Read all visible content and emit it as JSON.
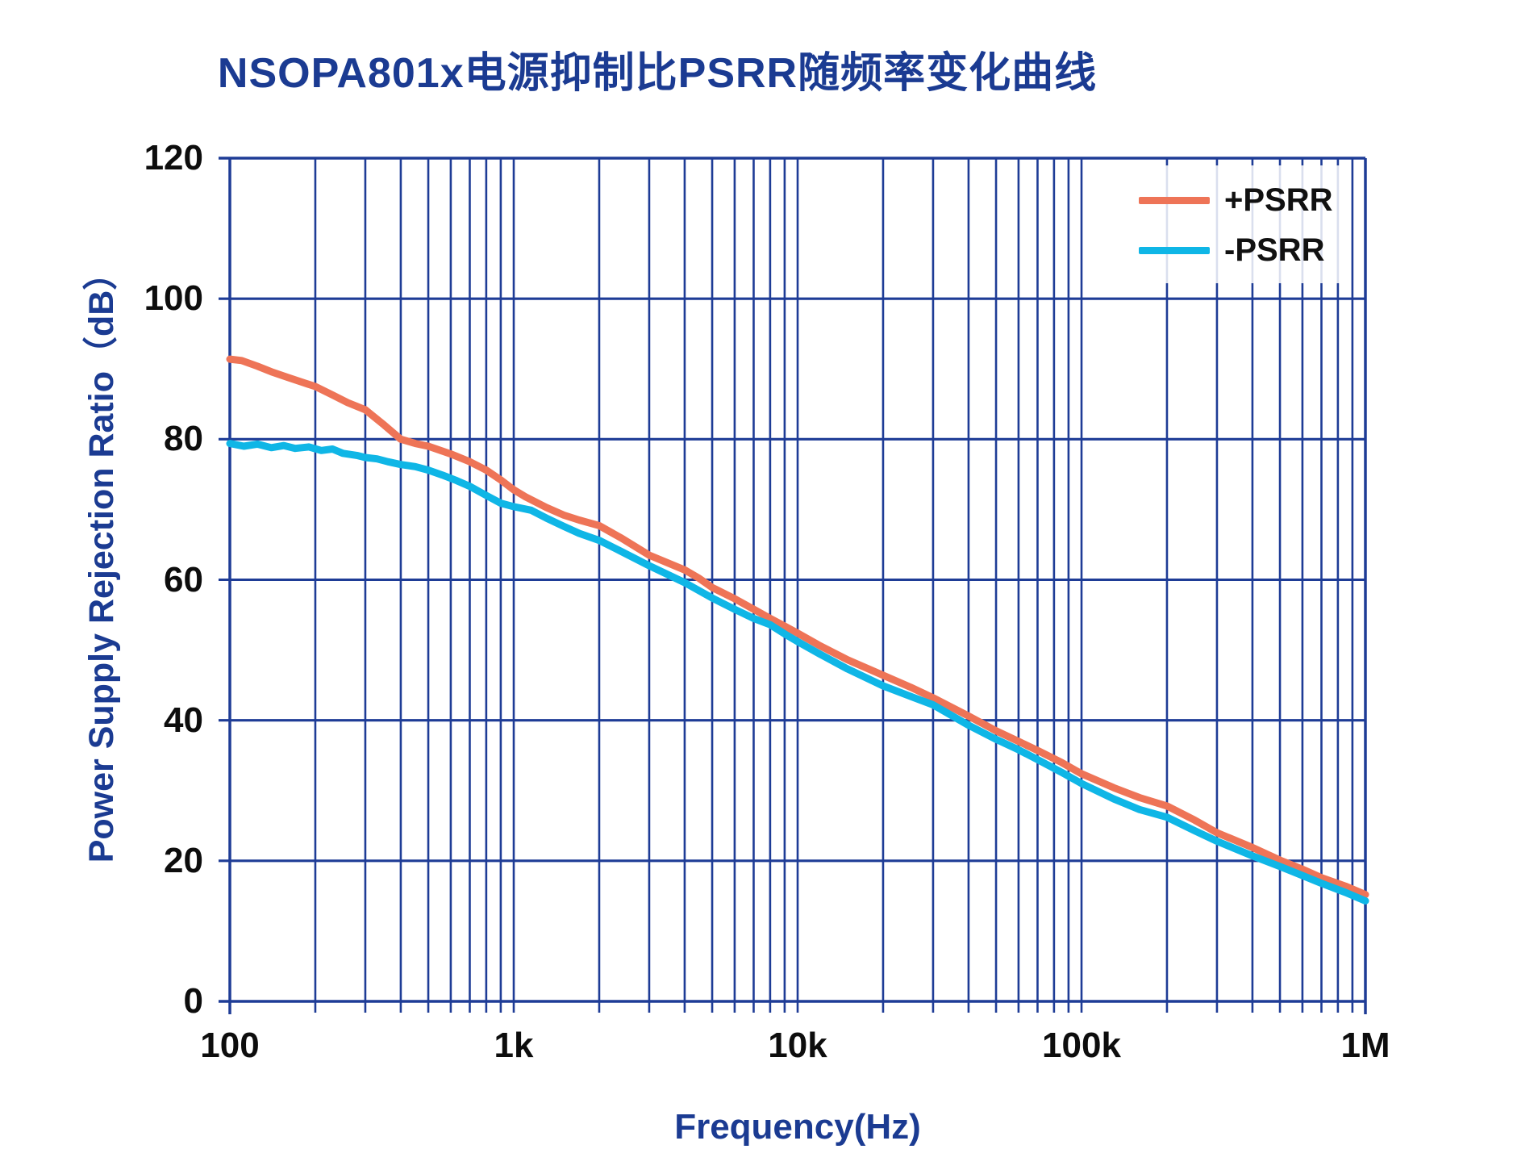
{
  "title": "NSOPA801x电源抑制比PSRR随频率变化曲线",
  "colors": {
    "brand_navy_text": "#1b3b92",
    "grid_navy": "#1e3c96",
    "tick_text": "#0d0d0d",
    "psrr_plus": "#ee7457",
    "psrr_minus": "#0fb6e6",
    "background": "#ffffff",
    "legend_background": "rgba(255,255,255,0.84)"
  },
  "x_axis": {
    "label": "Frequency(Hz)",
    "tick_labels": [
      "100",
      "1k",
      "10k",
      "100k",
      "1M"
    ],
    "tick_values": [
      100,
      1000,
      10000,
      100000,
      1000000
    ]
  },
  "y_axis": {
    "label": "Power Supply Rejection Ratio（dB）",
    "tick_labels": [
      "0",
      "20",
      "40",
      "60",
      "80",
      "100",
      "120"
    ],
    "tick_values": [
      0,
      20,
      40,
      60,
      80,
      100,
      120
    ]
  },
  "legend": {
    "position": "top-right",
    "items": [
      {
        "label": "+PSRR",
        "color": "#ee7457"
      },
      {
        "label": "-PSRR",
        "color": "#0fb6e6"
      }
    ]
  },
  "chart_data": {
    "type": "line",
    "title": "NSOPA801x电源抑制比PSRR随频率变化曲线",
    "xlabel": "Frequency(Hz)",
    "ylabel": "Power Supply Rejection Ratio（dB）",
    "xscale": "log",
    "xlim": [
      100,
      1000000
    ],
    "ylim": [
      0,
      120
    ],
    "y_major_step": 20,
    "grid": true,
    "legend_position": "top-right",
    "series": [
      {
        "name": "+PSRR",
        "color": "#ee7457",
        "points": [
          [
            100,
            91.4
          ],
          [
            110,
            91.2
          ],
          [
            125,
            90.4
          ],
          [
            140,
            89.6
          ],
          [
            160,
            88.8
          ],
          [
            180,
            88.1
          ],
          [
            200,
            87.5
          ],
          [
            230,
            86.3
          ],
          [
            260,
            85.2
          ],
          [
            300,
            84.2
          ],
          [
            350,
            82.0
          ],
          [
            400,
            80.0
          ],
          [
            450,
            79.4
          ],
          [
            500,
            79.0
          ],
          [
            600,
            77.9
          ],
          [
            700,
            76.8
          ],
          [
            800,
            75.6
          ],
          [
            900,
            74.2
          ],
          [
            1000,
            72.8
          ],
          [
            1100,
            71.8
          ],
          [
            1300,
            70.3
          ],
          [
            1500,
            69.2
          ],
          [
            1700,
            68.5
          ],
          [
            2000,
            67.7
          ],
          [
            2400,
            65.9
          ],
          [
            3000,
            63.5
          ],
          [
            4000,
            61.4
          ],
          [
            4500,
            60.2
          ],
          [
            5000,
            58.9
          ],
          [
            6000,
            57.3
          ],
          [
            7000,
            55.8
          ],
          [
            8000,
            54.5
          ],
          [
            9000,
            53.4
          ],
          [
            10000,
            52.4
          ],
          [
            12000,
            50.6
          ],
          [
            15000,
            48.6
          ],
          [
            20000,
            46.4
          ],
          [
            25000,
            44.7
          ],
          [
            30000,
            43.2
          ],
          [
            40000,
            40.6
          ],
          [
            50000,
            38.5
          ],
          [
            60000,
            37.0
          ],
          [
            70000,
            35.7
          ],
          [
            85000,
            34.0
          ],
          [
            100000,
            32.4
          ],
          [
            130000,
            30.4
          ],
          [
            160000,
            29.0
          ],
          [
            200000,
            27.8
          ],
          [
            250000,
            25.8
          ],
          [
            300000,
            24.0
          ],
          [
            400000,
            21.9
          ],
          [
            500000,
            20.1
          ],
          [
            600000,
            18.8
          ],
          [
            700000,
            17.6
          ],
          [
            850000,
            16.4
          ],
          [
            1000000,
            15.2
          ]
        ]
      },
      {
        "name": "-PSRR",
        "color": "#0fb6e6",
        "points": [
          [
            100,
            79.4
          ],
          [
            112,
            79.0
          ],
          [
            125,
            79.3
          ],
          [
            140,
            78.8
          ],
          [
            155,
            79.1
          ],
          [
            170,
            78.7
          ],
          [
            190,
            78.9
          ],
          [
            210,
            78.4
          ],
          [
            230,
            78.6
          ],
          [
            250,
            78.0
          ],
          [
            280,
            77.7
          ],
          [
            300,
            77.4
          ],
          [
            330,
            77.2
          ],
          [
            360,
            76.8
          ],
          [
            400,
            76.4
          ],
          [
            450,
            76.1
          ],
          [
            500,
            75.6
          ],
          [
            560,
            74.9
          ],
          [
            630,
            74.1
          ],
          [
            700,
            73.3
          ],
          [
            800,
            72.0
          ],
          [
            900,
            70.9
          ],
          [
            1000,
            70.4
          ],
          [
            1150,
            69.9
          ],
          [
            1300,
            68.8
          ],
          [
            1500,
            67.6
          ],
          [
            1700,
            66.6
          ],
          [
            2000,
            65.6
          ],
          [
            2400,
            64.0
          ],
          [
            3000,
            62.0
          ],
          [
            4000,
            59.6
          ],
          [
            5000,
            57.4
          ],
          [
            6000,
            55.8
          ],
          [
            7000,
            54.5
          ],
          [
            8000,
            53.6
          ],
          [
            9000,
            52.3
          ],
          [
            10000,
            51.2
          ],
          [
            12000,
            49.4
          ],
          [
            15000,
            47.3
          ],
          [
            20000,
            44.9
          ],
          [
            25000,
            43.4
          ],
          [
            30000,
            42.2
          ],
          [
            40000,
            39.3
          ],
          [
            50000,
            37.3
          ],
          [
            60000,
            35.8
          ],
          [
            70000,
            34.4
          ],
          [
            85000,
            32.6
          ],
          [
            100000,
            31.0
          ],
          [
            130000,
            28.8
          ],
          [
            160000,
            27.3
          ],
          [
            200000,
            26.2
          ],
          [
            250000,
            24.3
          ],
          [
            300000,
            22.8
          ],
          [
            400000,
            20.7
          ],
          [
            500000,
            19.2
          ],
          [
            600000,
            17.9
          ],
          [
            700000,
            16.8
          ],
          [
            850000,
            15.5
          ],
          [
            1000000,
            14.3
          ]
        ]
      }
    ]
  }
}
